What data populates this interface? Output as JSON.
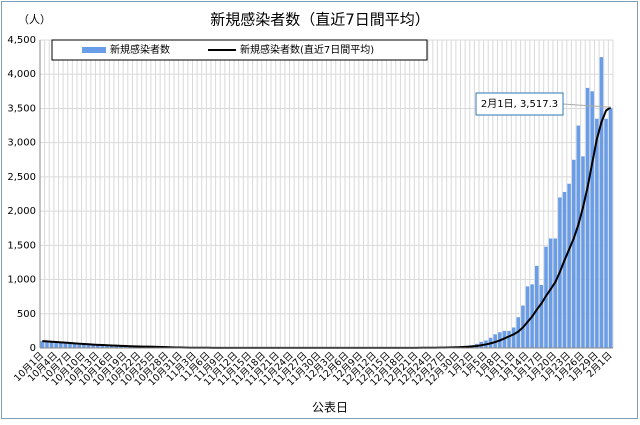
{
  "chart_data": {
    "type": "bar_line",
    "title": "新規感染者数（直近7日間平均）",
    "y_unit": "（人）",
    "xlabel": "公表日",
    "annotation": "2月1日, 3,517.3",
    "categories": [
      "10月1日",
      null,
      null,
      "10月4日",
      null,
      null,
      "10月7日",
      null,
      null,
      "10月10日",
      null,
      null,
      "10月13日",
      null,
      null,
      "10月16日",
      null,
      null,
      "10月19日",
      null,
      null,
      "10月22日",
      null,
      null,
      "10月25日",
      null,
      null,
      "10月28日",
      null,
      null,
      "10月31日",
      null,
      null,
      "11月3日",
      null,
      null,
      "11月6日",
      null,
      null,
      "11月9日",
      null,
      null,
      "11月12日",
      null,
      null,
      "11月15日",
      null,
      null,
      "11月18日",
      null,
      null,
      "11月21日",
      null,
      null,
      "11月24日",
      null,
      null,
      "11月27日",
      null,
      null,
      "11月30日",
      null,
      null,
      "12月3日",
      null,
      null,
      "12月6日",
      null,
      null,
      "12月9日",
      null,
      null,
      "12月12日",
      null,
      null,
      "12月15日",
      null,
      null,
      "12月18日",
      null,
      null,
      "12月21日",
      null,
      null,
      "12月24日",
      null,
      null,
      "12月27日",
      null,
      null,
      "12月30日",
      null,
      null,
      "1月2日",
      null,
      null,
      "1月5日",
      null,
      null,
      "1月8日",
      null,
      null,
      "1月11日",
      null,
      null,
      "1月14日",
      null,
      null,
      "1月17日",
      null,
      null,
      "1月20日",
      null,
      null,
      "1月23日",
      null,
      null,
      "1月26日",
      null,
      null,
      "1月29日",
      null,
      null,
      "2月1日"
    ],
    "series": [
      {
        "name": "新規感染者数",
        "kind": "bar",
        "color": "#6a9de8",
        "values": [
          100,
          95,
          88,
          80,
          75,
          70,
          65,
          60,
          55,
          50,
          45,
          42,
          40,
          38,
          35,
          32,
          30,
          28,
          25,
          22,
          20,
          18,
          15,
          12,
          30,
          10,
          8,
          6,
          5,
          5,
          4,
          4,
          3,
          3,
          3,
          2,
          2,
          2,
          2,
          2,
          2,
          2,
          2,
          2,
          2,
          2,
          2,
          2,
          2,
          2,
          2,
          2,
          2,
          2,
          2,
          2,
          2,
          2,
          2,
          2,
          2,
          2,
          2,
          2,
          2,
          2,
          2,
          2,
          2,
          2,
          2,
          2,
          2,
          2,
          2,
          2,
          2,
          2,
          2,
          2,
          2,
          3,
          3,
          4,
          5,
          5,
          8,
          10,
          12,
          15,
          20,
          25,
          30,
          40,
          60,
          90,
          110,
          150,
          200,
          230,
          250,
          250,
          300,
          450,
          620,
          900,
          930,
          1200,
          920,
          1480,
          1600,
          1600,
          2200,
          2280,
          2400,
          2750,
          3250,
          2800,
          3800,
          3750,
          3350,
          4250,
          3350,
          3500
        ]
      },
      {
        "name": "新規感染者数(直近7日間平均)",
        "kind": "line",
        "color": "#000000",
        "values": [
          100,
          96,
          92,
          88,
          83,
          78,
          73,
          68,
          63,
          58,
          54,
          50,
          46,
          43,
          40,
          37,
          34,
          31,
          29,
          26,
          24,
          22,
          20,
          20,
          19,
          17,
          15,
          12,
          10,
          8,
          7,
          5,
          4,
          4,
          3,
          3,
          3,
          2,
          2,
          2,
          2,
          2,
          2,
          2,
          2,
          2,
          2,
          2,
          2,
          2,
          2,
          2,
          2,
          2,
          2,
          2,
          2,
          2,
          2,
          2,
          2,
          2,
          2,
          2,
          2,
          2,
          2,
          2,
          2,
          2,
          2,
          2,
          2,
          2,
          2,
          2,
          2,
          2,
          2,
          2,
          2,
          2,
          3,
          3,
          3,
          4,
          5,
          6,
          7,
          9,
          11,
          14,
          18,
          23,
          30,
          40,
          52,
          68,
          87,
          110,
          140,
          170,
          200,
          240,
          300,
          380,
          460,
          560,
          650,
          760,
          860,
          960,
          1110,
          1280,
          1440,
          1600,
          1800,
          2050,
          2350,
          2700,
          3050,
          3300,
          3470,
          3517.3
        ]
      }
    ],
    "ylim": [
      0,
      4500
    ],
    "yticks": [
      0,
      500,
      {
        "value": 1000,
        "label": "1,000"
      },
      {
        "value": 1500,
        "label": "1,500"
      },
      {
        "value": 2000,
        "label": "2,000"
      },
      {
        "value": 2500,
        "label": "2,500"
      },
      {
        "value": 3000,
        "label": "3,000"
      },
      {
        "value": 3500,
        "label": "3,500"
      },
      {
        "value": 4000,
        "label": "4,000"
      },
      {
        "value": 4500,
        "label": "4,500"
      }
    ],
    "grid": true
  }
}
